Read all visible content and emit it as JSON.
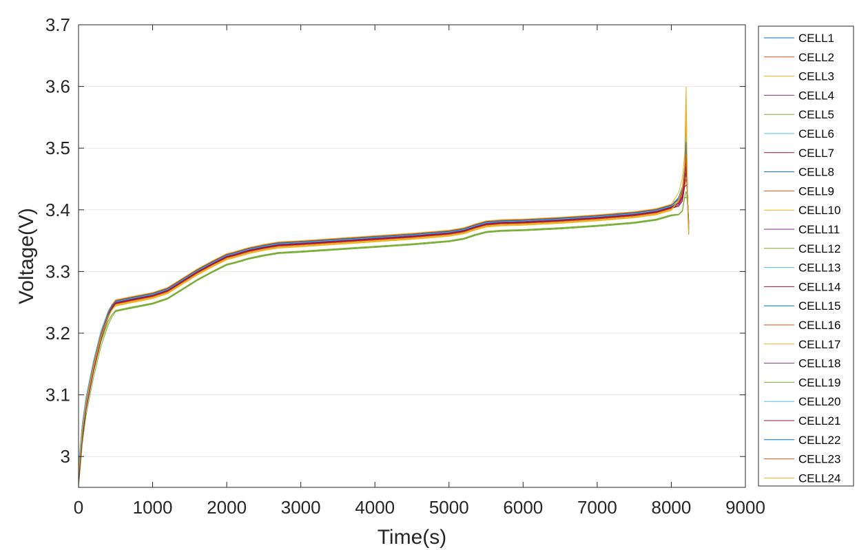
{
  "chart_data": {
    "type": "line",
    "title": "",
    "xlabel": "Time(s)",
    "ylabel": "Voltage(V)",
    "xlim": [
      0,
      9000
    ],
    "ylim": [
      2.95,
      3.7
    ],
    "xticks": [
      0,
      1000,
      2000,
      3000,
      4000,
      5000,
      6000,
      7000,
      8000,
      9000
    ],
    "yticks": [
      3.0,
      3.1,
      3.2,
      3.3,
      3.4,
      3.5,
      3.6,
      3.7
    ],
    "xtick_labels": [
      "0",
      "1000",
      "2000",
      "3000",
      "4000",
      "5000",
      "6000",
      "7000",
      "8000",
      "9000"
    ],
    "ytick_labels": [
      "3",
      "3.1",
      "3.2",
      "3.3",
      "3.4",
      "3.5",
      "3.6",
      "3.7"
    ],
    "grid": "horizontal",
    "legend_position": "right-outside",
    "colors": [
      "#0072BD",
      "#D95319",
      "#EDB120",
      "#7E2F8E",
      "#77AC30",
      "#4DBEEE",
      "#A2142F"
    ],
    "base_curve": {
      "x": [
        0,
        50,
        100,
        200,
        300,
        400,
        450,
        500,
        700,
        1000,
        1200,
        1400,
        1600,
        1800,
        2000,
        2100,
        2300,
        2500,
        2700,
        3000,
        3500,
        4000,
        4500,
        5000,
        5200,
        5350,
        5500,
        5700,
        6000,
        6500,
        7000,
        7500,
        7800,
        8000,
        8100,
        8150,
        8180,
        8200,
        8210,
        8220,
        8235
      ],
      "y": [
        2.97,
        3.04,
        3.085,
        3.145,
        3.195,
        3.23,
        3.242,
        3.25,
        3.255,
        3.262,
        3.27,
        3.285,
        3.3,
        3.313,
        3.325,
        3.328,
        3.335,
        3.34,
        3.344,
        3.346,
        3.35,
        3.354,
        3.358,
        3.363,
        3.367,
        3.373,
        3.378,
        3.38,
        3.381,
        3.384,
        3.388,
        3.393,
        3.398,
        3.405,
        3.415,
        3.43,
        3.46,
        3.51,
        3.5,
        3.42,
        3.375
      ]
    },
    "series": [
      {
        "name": "CELL1",
        "offset": 0.0,
        "peak": 3.5,
        "end": 3.37
      },
      {
        "name": "CELL2",
        "offset": 0.002,
        "peak": 3.52,
        "end": 3.365
      },
      {
        "name": "CELL3",
        "offset": 0.004,
        "peak": 3.6,
        "end": 3.36
      },
      {
        "name": "CELL4",
        "offset": -0.002,
        "peak": 3.46,
        "end": 3.38
      },
      {
        "name": "CELL5",
        "offset": -0.014,
        "peak": 3.42,
        "end": 3.362
      },
      {
        "name": "CELL6",
        "offset": 0.001,
        "peak": 3.53,
        "end": 3.372
      },
      {
        "name": "CELL7",
        "offset": -0.001,
        "peak": 3.48,
        "end": 3.375
      },
      {
        "name": "CELL8",
        "offset": 0.002,
        "peak": 3.51,
        "end": 3.368
      },
      {
        "name": "CELL9",
        "offset": -0.003,
        "peak": 3.45,
        "end": 3.378
      },
      {
        "name": "CELL10",
        "offset": -0.006,
        "peak": 3.56,
        "end": 3.363
      },
      {
        "name": "CELL11",
        "offset": 0.0,
        "peak": 3.47,
        "end": 3.382
      },
      {
        "name": "CELL12",
        "offset": -0.015,
        "peak": 3.43,
        "end": 3.36
      },
      {
        "name": "CELL13",
        "offset": 0.001,
        "peak": 3.49,
        "end": 3.373
      },
      {
        "name": "CELL14",
        "offset": -0.002,
        "peak": 3.44,
        "end": 3.38
      },
      {
        "name": "CELL15",
        "offset": 0.002,
        "peak": 3.54,
        "end": 3.37
      },
      {
        "name": "CELL16",
        "offset": -0.001,
        "peak": 3.5,
        "end": 3.366
      },
      {
        "name": "CELL17",
        "offset": -0.004,
        "peak": 3.55,
        "end": 3.364
      },
      {
        "name": "CELL18",
        "offset": 0.0,
        "peak": 3.46,
        "end": 3.377
      },
      {
        "name": "CELL19",
        "offset": -0.013,
        "peak": 3.42,
        "end": 3.361
      },
      {
        "name": "CELL20",
        "offset": 0.001,
        "peak": 3.52,
        "end": 3.371
      },
      {
        "name": "CELL21",
        "offset": -0.001,
        "peak": 3.47,
        "end": 3.376
      },
      {
        "name": "CELL22",
        "offset": 0.002,
        "peak": 3.51,
        "end": 3.369
      },
      {
        "name": "CELL23",
        "offset": 0.003,
        "peak": 3.49,
        "end": 3.367
      },
      {
        "name": "CELL24",
        "offset": -0.005,
        "peak": 3.57,
        "end": 3.362
      }
    ]
  }
}
